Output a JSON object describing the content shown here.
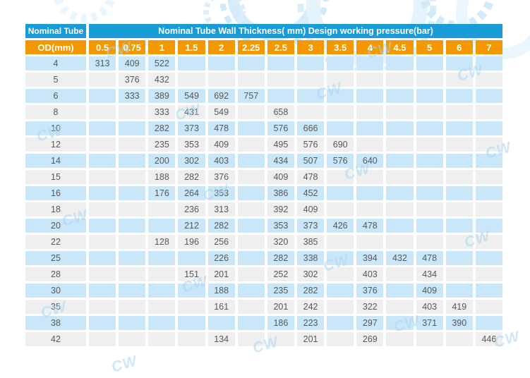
{
  "watermark": {
    "text": "CW"
  },
  "colors": {
    "header_blue": "#189bd7",
    "header_orange": "#f39800",
    "row_blue": "#c9e7f8",
    "row_gray": "#efefef",
    "cell_text": "#595757",
    "banner_gear_blue": "#d6ecfa"
  },
  "chart_data": {
    "type": "table",
    "title": "Nominal Tube Wall Thickness( mm)  Design working pressure(bar)",
    "corner_header": "Nominal Tube",
    "od_header": "OD(mm)",
    "thickness_columns": [
      "0.5",
      "0.75",
      "1",
      "1.5",
      "2",
      "2.25",
      "2.5",
      "3",
      "3.5",
      "4",
      "4.5",
      "5",
      "6",
      "7"
    ],
    "rows": [
      {
        "od": "4",
        "values": [
          "313",
          "409",
          "522",
          "",
          "",
          "",
          "",
          "",
          "",
          "",
          "",
          "",
          "",
          ""
        ]
      },
      {
        "od": "5",
        "values": [
          "",
          "376",
          "432",
          "",
          "",
          "",
          "",
          "",
          "",
          "",
          "",
          "",
          "",
          ""
        ]
      },
      {
        "od": "6",
        "values": [
          "",
          "333",
          "389",
          "549",
          "692",
          "757",
          "",
          "",
          "",
          "",
          "",
          "",
          "",
          ""
        ]
      },
      {
        "od": "8",
        "values": [
          "",
          "",
          "333",
          "431",
          "549",
          "",
          "658",
          "",
          "",
          "",
          "",
          "",
          "",
          ""
        ]
      },
      {
        "od": "10",
        "values": [
          "",
          "",
          "282",
          "373",
          "478",
          "",
          "576",
          "666",
          "",
          "",
          "",
          "",
          "",
          ""
        ]
      },
      {
        "od": "12",
        "values": [
          "",
          "",
          "235",
          "353",
          "409",
          "",
          "495",
          "576",
          "690",
          "",
          "",
          "",
          "",
          ""
        ]
      },
      {
        "od": "14",
        "values": [
          "",
          "",
          "200",
          "302",
          "403",
          "",
          "434",
          "507",
          "576",
          "640",
          "",
          "",
          "",
          ""
        ]
      },
      {
        "od": "15",
        "values": [
          "",
          "",
          "188",
          "282",
          "376",
          "",
          "409",
          "478",
          "",
          "",
          "",
          "",
          "",
          ""
        ]
      },
      {
        "od": "16",
        "values": [
          "",
          "",
          "176",
          "264",
          "353",
          "",
          "386",
          "452",
          "",
          "",
          "",
          "",
          "",
          ""
        ]
      },
      {
        "od": "18",
        "values": [
          "",
          "",
          "",
          "236",
          "313",
          "",
          "392",
          "409",
          "",
          "",
          "",
          "",
          "",
          ""
        ]
      },
      {
        "od": "20",
        "values": [
          "",
          "",
          "",
          "212",
          "282",
          "",
          "353",
          "373",
          "426",
          "478",
          "",
          "",
          "",
          ""
        ]
      },
      {
        "od": "22",
        "values": [
          "",
          "",
          "128",
          "196",
          "256",
          "",
          "320",
          "385",
          "",
          "",
          "",
          "",
          "",
          ""
        ]
      },
      {
        "od": "25",
        "values": [
          "",
          "",
          "",
          "",
          "226",
          "",
          "282",
          "338",
          "",
          "394",
          "432",
          "478",
          "",
          ""
        ]
      },
      {
        "od": "28",
        "values": [
          "",
          "",
          "",
          "151",
          "201",
          "",
          "252",
          "302",
          "",
          "403",
          "",
          "434",
          "",
          ""
        ]
      },
      {
        "od": "30",
        "values": [
          "",
          "",
          "",
          "",
          "188",
          "",
          "235",
          "282",
          "",
          "376",
          "",
          "409",
          "",
          ""
        ]
      },
      {
        "od": "35",
        "values": [
          "",
          "",
          "",
          "",
          "161",
          "",
          "201",
          "242",
          "",
          "322",
          "",
          "403",
          "419",
          ""
        ]
      },
      {
        "od": "38",
        "values": [
          "",
          "",
          "",
          "",
          "",
          "",
          "186",
          "223",
          "",
          "297",
          "",
          "371",
          "390",
          ""
        ]
      },
      {
        "od": "42",
        "values": [
          "",
          "",
          "",
          "",
          "134",
          "",
          "",
          "201",
          "",
          "269",
          "",
          "",
          "",
          "446"
        ]
      }
    ]
  }
}
